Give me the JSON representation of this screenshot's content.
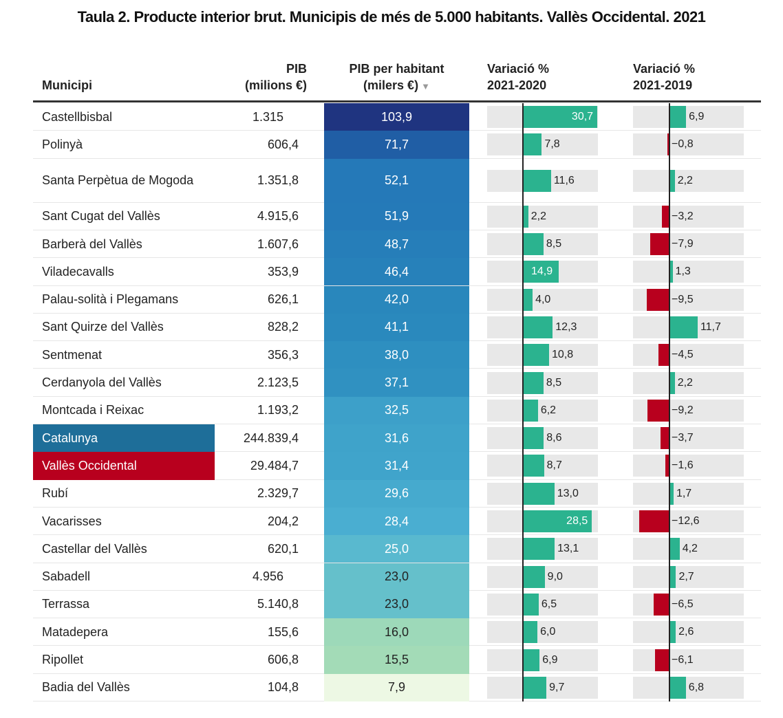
{
  "title": "Taula 2. Producte interior brut. Municipis de més de 5.000 habitants. Vallès Occidental. 2021",
  "headers": {
    "municipi": "Municipi",
    "pib_1": "PIB",
    "pib_2": "(milions €)",
    "pph_1": "PIB per habitant",
    "pph_2": "(milers €)",
    "var20_1": "Variació %",
    "var20_2": "2021-2020",
    "var19_1": "Variació %",
    "var19_2": "2021-2019",
    "sort_icon": "▼"
  },
  "colors": {
    "positive": "#2bb38f",
    "negative": "#b8001e",
    "catalunya": "#1e6e99",
    "valles": "#b8001e",
    "track": "#e8e8e8"
  },
  "chart_data": {
    "type": "table",
    "title": "Taula 2. Producte interior brut. Municipis de més de 5.000 habitants. Vallès Occidental. 2021",
    "columns": [
      "Municipi",
      "PIB (milions €)",
      "PIB per habitant (milers €)",
      "Variació % 2021-2020",
      "Variació % 2021-2019"
    ],
    "sorted_by": "PIB per habitant (milers €)",
    "rows": [
      {
        "municipi": "Castellbisbal",
        "pib": "1.315",
        "pph": "103,9",
        "pph_num": 103.9,
        "v20": "30,7",
        "v20_num": 30.7,
        "v19": "6,9",
        "v19_num": 6.9,
        "pib_align": "center"
      },
      {
        "municipi": "Polinyà",
        "pib": "606,4",
        "pph": "71,7",
        "pph_num": 71.7,
        "v20": "7,8",
        "v20_num": 7.8,
        "v19": "−0,8",
        "v19_num": -0.8
      },
      {
        "municipi": "Santa Perpètua de Mogoda",
        "pib": "1.351,8",
        "pph": "52,1",
        "pph_num": 52.1,
        "v20": "11,6",
        "v20_num": 11.6,
        "v19": "2,2",
        "v19_num": 2.2,
        "tall": true
      },
      {
        "municipi": "Sant Cugat del Vallès",
        "pib": "4.915,6",
        "pph": "51,9",
        "pph_num": 51.9,
        "v20": "2,2",
        "v20_num": 2.2,
        "v19": "−3,2",
        "v19_num": -3.2
      },
      {
        "municipi": "Barberà del Vallès",
        "pib": "1.607,6",
        "pph": "48,7",
        "pph_num": 48.7,
        "v20": "8,5",
        "v20_num": 8.5,
        "v19": "−7,9",
        "v19_num": -7.9
      },
      {
        "municipi": "Viladecavalls",
        "pib": "353,9",
        "pph": "46,4",
        "pph_num": 46.4,
        "v20": "14,9",
        "v20_num": 14.9,
        "v19": "1,3",
        "v19_num": 1.3,
        "v20_inside": true
      },
      {
        "municipi": "Palau-solità i Plegamans",
        "pib": "626,1",
        "pph": "42,0",
        "pph_num": 42.0,
        "v20": "4,0",
        "v20_num": 4.0,
        "v19": "−9,5",
        "v19_num": -9.5
      },
      {
        "municipi": "Sant Quirze del Vallès",
        "pib": "828,2",
        "pph": "41,1",
        "pph_num": 41.1,
        "v20": "12,3",
        "v20_num": 12.3,
        "v19": "11,7",
        "v19_num": 11.7
      },
      {
        "municipi": "Sentmenat",
        "pib": "356,3",
        "pph": "38,0",
        "pph_num": 38.0,
        "v20": "10,8",
        "v20_num": 10.8,
        "v19": "−4,5",
        "v19_num": -4.5
      },
      {
        "municipi": "Cerdanyola del Vallès",
        "pib": "2.123,5",
        "pph": "37,1",
        "pph_num": 37.1,
        "v20": "8,5",
        "v20_num": 8.5,
        "v19": "2,2",
        "v19_num": 2.2
      },
      {
        "municipi": "Montcada i Reixac",
        "pib": "1.193,2",
        "pph": "32,5",
        "pph_num": 32.5,
        "v20": "6,2",
        "v20_num": 6.2,
        "v19": "−9,2",
        "v19_num": -9.2
      },
      {
        "municipi": "Catalunya",
        "pib": "244.839,4",
        "pph": "31,6",
        "pph_num": 31.6,
        "v20": "8,6",
        "v20_num": 8.6,
        "v19": "−3,7",
        "v19_num": -3.7,
        "highlight": "catalunya"
      },
      {
        "municipi": "Vallès Occidental",
        "pib": "29.484,7",
        "pph": "31,4",
        "pph_num": 31.4,
        "v20": "8,7",
        "v20_num": 8.7,
        "v19": "−1,6",
        "v19_num": -1.6,
        "highlight": "valles"
      },
      {
        "municipi": "Rubí",
        "pib": "2.329,7",
        "pph": "29,6",
        "pph_num": 29.6,
        "v20": "13,0",
        "v20_num": 13.0,
        "v19": "1,7",
        "v19_num": 1.7
      },
      {
        "municipi": "Vacarisses",
        "pib": "204,2",
        "pph": "28,4",
        "pph_num": 28.4,
        "v20": "28,5",
        "v20_num": 28.5,
        "v19": "−12,6",
        "v19_num": -12.6
      },
      {
        "municipi": "Castellar del Vallès",
        "pib": "620,1",
        "pph": "25,0",
        "pph_num": 25.0,
        "v20": "13,1",
        "v20_num": 13.1,
        "v19": "4,2",
        "v19_num": 4.2
      },
      {
        "municipi": "Sabadell",
        "pib": "4.956",
        "pph": "23,0",
        "pph_num": 23.0,
        "v20": "9,0",
        "v20_num": 9.0,
        "v19": "2,7",
        "v19_num": 2.7,
        "pib_align": "center"
      },
      {
        "municipi": "Terrassa",
        "pib": "5.140,8",
        "pph": "23,0",
        "pph_num": 23.0,
        "v20": "6,5",
        "v20_num": 6.5,
        "v19": "−6,5",
        "v19_num": -6.5
      },
      {
        "municipi": "Matadepera",
        "pib": "155,6",
        "pph": "16,0",
        "pph_num": 16.0,
        "v20": "6,0",
        "v20_num": 6.0,
        "v19": "2,6",
        "v19_num": 2.6
      },
      {
        "municipi": "Ripollet",
        "pib": "606,8",
        "pph": "15,5",
        "pph_num": 15.5,
        "v20": "6,9",
        "v20_num": 6.9,
        "v19": "−6,1",
        "v19_num": -6.1
      },
      {
        "municipi": "Badia del Vallès",
        "pib": "104,8",
        "pph": "7,9",
        "pph_num": 7.9,
        "v20": "9,7",
        "v20_num": 9.7,
        "v19": "6,8",
        "v19_num": 6.8
      }
    ],
    "v20_range": [
      -10,
      35
    ],
    "v19_range": [
      -15,
      20
    ]
  }
}
